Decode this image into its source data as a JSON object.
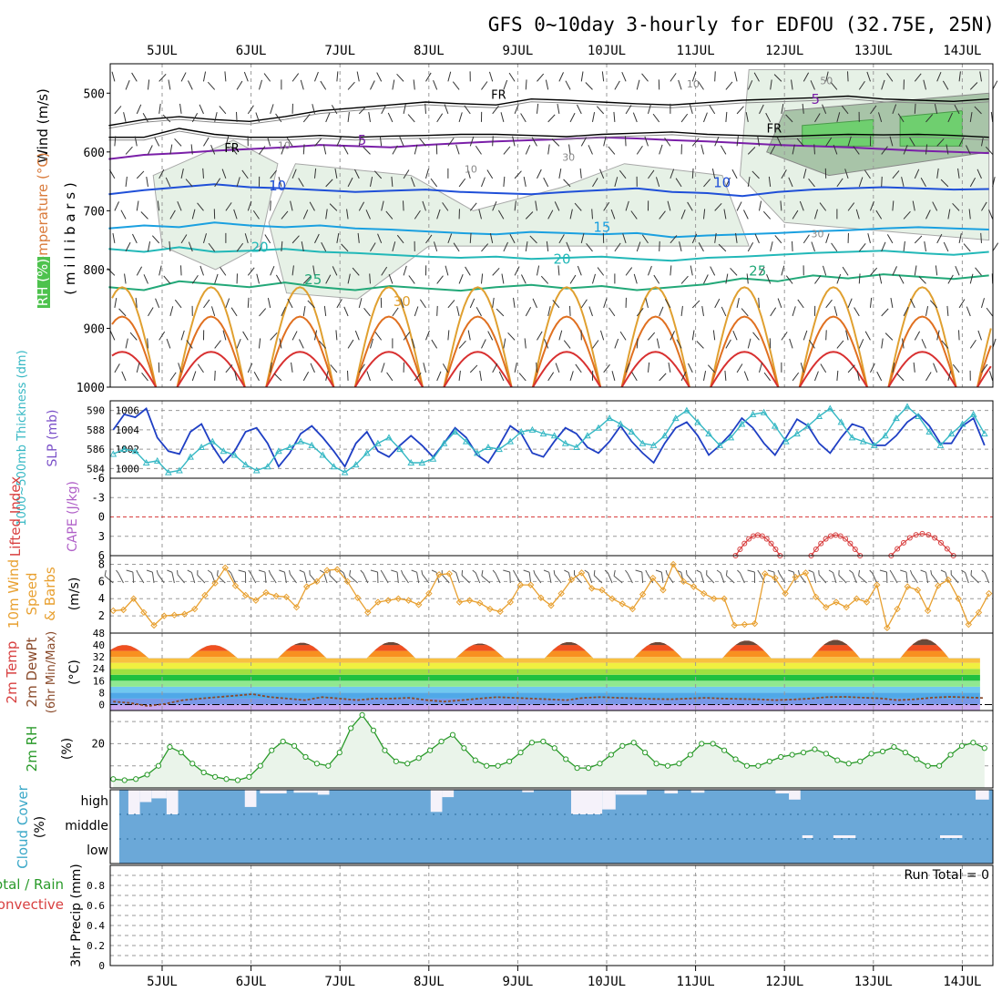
{
  "title": "GFS 0~10day 3-hourly for EDFOU (32.75E, 25N)",
  "date_labels": [
    "5JUL",
    "6JUL",
    "7JUL",
    "8JUL",
    "9JUL",
    "10JUL",
    "11JUL",
    "12JUL",
    "13JUL",
    "14JUL"
  ],
  "colors": {
    "grid": "#9a9a9a",
    "rh_fill": "#e6f1e6",
    "slp": "#1f3fc4",
    "thickness": "#36b8c4",
    "lifted_index": "#d84040",
    "wind_speed": "#e8a030",
    "rh2m": "#2a9a2a",
    "cloud": "#6ba8d8"
  },
  "chart_data": [
    {
      "type": "contour",
      "name": "upper-air",
      "ylabel_wind": "Wind (m/s)",
      "ylabel_temp": "Temperature (°C)",
      "ylabel_rh": "RH (%)",
      "ylabel_mb": "( m i l l i b a r s )",
      "yticks": [
        "500",
        "600",
        "700",
        "800",
        "900",
        "1000"
      ],
      "ylim": [
        1000,
        450
      ],
      "fr_labels": [
        "FR",
        "FR",
        "FR"
      ],
      "temp_contour_labels": [
        "5",
        "5",
        "10",
        "10",
        "15",
        "20",
        "20",
        "25",
        "25",
        "30"
      ],
      "rh_contour_labels": [
        "10",
        "10",
        "30",
        "10",
        "30",
        "50"
      ],
      "temperature_levels": [
        {
          "t": 5,
          "color": "#7a1fa8",
          "p": [
            612,
            605,
            602,
            598,
            595,
            592,
            588,
            590,
            592,
            588,
            585,
            582,
            580,
            578,
            575,
            577,
            580,
            582,
            585,
            588,
            590,
            592,
            595,
            598,
            600,
            602
          ]
        },
        {
          "t": 10,
          "color": "#1f4fd8",
          "p": [
            672,
            665,
            660,
            655,
            660,
            662,
            665,
            668,
            666,
            664,
            668,
            670,
            672,
            668,
            665,
            662,
            668,
            670,
            675,
            668,
            664,
            662,
            660,
            662,
            664,
            663
          ]
        },
        {
          "t": 15,
          "color": "#1aa0e0",
          "p": [
            730,
            725,
            728,
            720,
            725,
            728,
            725,
            730,
            732,
            735,
            738,
            740,
            736,
            738,
            740,
            738,
            745,
            742,
            740,
            738,
            735,
            733,
            730,
            728,
            730,
            732
          ]
        },
        {
          "t": 20,
          "color": "#22b8b8",
          "p": [
            765,
            770,
            762,
            770,
            768,
            765,
            770,
            772,
            775,
            778,
            780,
            778,
            782,
            780,
            778,
            782,
            785,
            780,
            778,
            775,
            772,
            770,
            768,
            772,
            775,
            770
          ]
        },
        {
          "t": 25,
          "color": "#22a878",
          "p": [
            830,
            835,
            820,
            825,
            830,
            822,
            830,
            835,
            828,
            832,
            836,
            830,
            826,
            832,
            828,
            835,
            830,
            825,
            815,
            820,
            810,
            815,
            808,
            812,
            816,
            810
          ]
        }
      ],
      "surface_warm_cycles": [
        {
          "t": 30,
          "color": "#e0a030"
        },
        {
          "t": 35,
          "color": "#e07020"
        },
        {
          "t": 40,
          "color": "#d83030"
        }
      ]
    },
    {
      "type": "line",
      "name": "slp-thickness",
      "ylabel": "1000~500mb Thickness (dm)",
      "ylabel2": "SLP (mb)",
      "yticks_left": [
        "590",
        "588",
        "586",
        "584"
      ],
      "yticks_right": [
        "1006",
        "1004",
        "1002",
        "1000"
      ],
      "series": [
        {
          "name": "SLP",
          "axis": "right",
          "ylim": [
            999,
            1007
          ],
          "values": [
            1004,
            1005.6,
            1005.3,
            1006.2,
            1003.2,
            1001.8,
            1001.5,
            1003.8,
            1004.6,
            1002.3,
            1000.6,
            1001.8,
            1003.8,
            1004.2,
            1002.6,
            1000.2,
            1001.6,
            1003.6,
            1004.4,
            1003.2,
            1001.8,
            1000.2,
            1002.6,
            1003.8,
            1001.8,
            1001.2,
            1002.4,
            1003.4,
            1002.4,
            1001.2,
            1002.6,
            1004.2,
            1003.2,
            1001.4,
            1000.6,
            1002.4,
            1004.4,
            1003.6,
            1001.6,
            1001.2,
            1002.8,
            1004.2,
            1003.6,
            1002.2,
            1001.6,
            1002.8,
            1004.4,
            1002.8,
            1001.6,
            1000.6,
            1002.6,
            1004.2,
            1004.8,
            1003.4,
            1001.4,
            1002.4,
            1003.6,
            1005.2,
            1004.2,
            1002.6,
            1001.4,
            1003.2,
            1005.1,
            1004.4,
            1002.6,
            1001.6,
            1003.2,
            1004.6,
            1004.2,
            1002.4,
            1002.4,
            1003.4,
            1004.8,
            1005.6,
            1004.4,
            1002.6,
            1002.6,
            1004.4,
            1005.2,
            1002.4
          ]
        },
        {
          "name": "Thickness",
          "axis": "left",
          "ylim": [
            583,
            591
          ],
          "values": [
            585.5,
            586,
            585.8,
            584.6,
            584.8,
            583.6,
            583.8,
            585.2,
            586.2,
            586.8,
            585.8,
            585.4,
            584.4,
            583.8,
            584.2,
            585.8,
            586.2,
            586.8,
            586.4,
            585.4,
            584.2,
            583.6,
            584.4,
            585.6,
            586.6,
            587.2,
            586,
            584.6,
            584.6,
            585,
            586.6,
            587.8,
            586.8,
            585.6,
            586.2,
            586,
            586.8,
            587.8,
            588,
            587.6,
            587.4,
            586.6,
            586.2,
            587.4,
            588.2,
            589.2,
            588.6,
            587.8,
            586.6,
            586.4,
            587.4,
            589.2,
            590,
            588.8,
            587.6,
            586.4,
            587.2,
            588.6,
            589.6,
            589.8,
            588.4,
            586.8,
            587.6,
            588.4,
            589.4,
            590.2,
            588.8,
            587.2,
            586.8,
            586.4,
            587.4,
            589.2,
            590.4,
            589.4,
            587.8,
            586.4,
            587.6,
            588.6,
            589.6,
            587.6
          ]
        }
      ]
    },
    {
      "type": "line",
      "name": "lifted-index-cape",
      "ylabel": "Lifted Index",
      "ylabel2": "CAPE (J/kg)",
      "yticks": [
        "-6",
        "-3",
        "0",
        "3",
        "6"
      ],
      "ylim": [
        -6,
        6
      ],
      "bumps": [
        {
          "day_start": 11.45,
          "day_end": 11.95,
          "min": 2.8
        },
        {
          "day_start": 12.3,
          "day_end": 12.85,
          "min": 2.8
        },
        {
          "day_start": 13.2,
          "day_end": 13.9,
          "min": 2.6
        }
      ]
    },
    {
      "type": "line",
      "name": "10m-wind",
      "ylabel": "10m Wind",
      "ylabel2": "Speed",
      "ylabel3": "& Barbs",
      "ylabel_unit": "(m/s)",
      "yticks": [
        "8",
        "6",
        "4",
        "2"
      ],
      "ylim": [
        0,
        9
      ],
      "values": [
        2.6,
        2.7,
        4,
        2.4,
        0.9,
        2,
        2.1,
        2.2,
        2.8,
        4.4,
        5.8,
        7.6,
        5.5,
        4.4,
        3.8,
        4.7,
        4.3,
        4.2,
        3,
        5.4,
        6,
        7.3,
        7.4,
        6,
        4.1,
        2.4,
        3.6,
        3.8,
        4,
        3.8,
        3.3,
        4.6,
        6.8,
        6.9,
        3.6,
        3.8,
        3.5,
        2.8,
        2.5,
        3.6,
        5.6,
        5.6,
        4.1,
        3.2,
        4.6,
        6.2,
        7,
        5.2,
        5,
        4,
        3.4,
        2.8,
        4.5,
        6.4,
        5,
        8,
        6,
        5.4,
        4.6,
        4,
        4,
        0.9,
        1,
        1.1,
        6.9,
        6.4,
        4.6,
        6.5,
        7,
        4.2,
        3,
        3.6,
        3,
        4,
        3.6,
        5.6,
        0.6,
        2.8,
        5.4,
        5,
        2.6,
        5.5,
        6.2,
        4,
        1,
        2.4,
        4.6
      ]
    },
    {
      "type": "area",
      "name": "2m-temp-dewpoint",
      "ylabel": "2m Temp",
      "ylabel2": "2m DewPt",
      "ylabel3": "(6hr Min/Max)",
      "ylabel_unit": "(°C)",
      "yticks": [
        "48",
        "40",
        "32",
        "24",
        "16",
        "8",
        "0"
      ],
      "ylim": [
        -4,
        48
      ],
      "temp_max_by_day": [
        40,
        41.5,
        42,
        41,
        42,
        42,
        43,
        43.5,
        44,
        44
      ],
      "temp_min": 31,
      "dewpoint": [
        2,
        1,
        -1,
        0.5,
        3,
        4,
        5,
        6,
        7,
        5,
        4,
        3,
        5,
        4,
        3,
        4,
        4,
        4.5,
        3,
        2,
        3,
        4,
        5,
        4.5,
        4,
        3.5,
        3,
        4.5,
        5,
        4.5,
        4.2,
        3.8,
        3.6,
        4,
        4.5,
        4,
        3.8,
        3.5,
        3,
        3.4,
        4,
        5,
        5.2,
        4.6,
        4.2,
        3,
        3.5,
        4.6,
        5.2,
        4.8,
        4.4
      ]
    },
    {
      "type": "area",
      "name": "2m-rh",
      "ylabel": "2m RH",
      "ylabel_unit": "(%)",
      "yticks": [
        "20"
      ],
      "ylim": [
        0,
        35
      ],
      "values": [
        4,
        3.5,
        4,
        6,
        10,
        18.5,
        16,
        11,
        7,
        5,
        4,
        3.5,
        5,
        10,
        17,
        21,
        19,
        14,
        11,
        10,
        16,
        27,
        33,
        26,
        17,
        12,
        11,
        13.5,
        17,
        21,
        24,
        18,
        12.5,
        10,
        10,
        12,
        16,
        20.5,
        21,
        18,
        13,
        9,
        9,
        11,
        15,
        19,
        20.5,
        16,
        11,
        10,
        11,
        15,
        20,
        20,
        17,
        13,
        10,
        10,
        12,
        14,
        15,
        16,
        17.5,
        15.5,
        12.5,
        11,
        12,
        15.5,
        16.5,
        18.5,
        16,
        13,
        10,
        10,
        15,
        19,
        20.5,
        18
      ]
    },
    {
      "type": "bar",
      "name": "cloud-cover",
      "ylabel": "Cloud Cover",
      "ylabel_unit": "(%)",
      "level_labels": [
        "high",
        "middle",
        "low"
      ],
      "high_gaps": [
        [
          4.62,
          4.75,
          1
        ],
        [
          4.75,
          4.88,
          0.5
        ],
        [
          4.88,
          5.05,
          0.35
        ],
        [
          5.05,
          5.18,
          1
        ],
        [
          5.93,
          6.06,
          0.7
        ],
        [
          6.1,
          6.4,
          0.15
        ],
        [
          6.48,
          6.75,
          0.12
        ],
        [
          6.75,
          6.88,
          0.2
        ],
        [
          8.02,
          8.15,
          0.9
        ],
        [
          8.15,
          8.28,
          0.3
        ],
        [
          9.05,
          9.18,
          0.1
        ],
        [
          9.6,
          9.95,
          1
        ],
        [
          9.95,
          10.1,
          0.8
        ],
        [
          10.1,
          10.45,
          0.2
        ],
        [
          10.65,
          10.8,
          0.15
        ],
        [
          10.95,
          11.1,
          0.12
        ],
        [
          11.9,
          12.05,
          0.15
        ],
        [
          12.05,
          12.18,
          0.4
        ],
        [
          14.15,
          14.3,
          0.4
        ]
      ],
      "mid_gaps": [
        [
          12.2,
          12.32,
          0.08
        ],
        [
          12.55,
          12.8,
          0.08
        ],
        [
          13.75,
          14.0,
          0.08
        ]
      ]
    },
    {
      "type": "bar",
      "name": "precip",
      "ylabel": "3hr Precip (mm)",
      "ylabel2": "Total / Rain",
      "ylabel3": "Convective",
      "yticks": [
        "0.8",
        "0.6",
        "0.4",
        "0.2",
        "0"
      ],
      "ylim": [
        0,
        1
      ],
      "run_total": "Run Total = 0",
      "values": []
    }
  ]
}
